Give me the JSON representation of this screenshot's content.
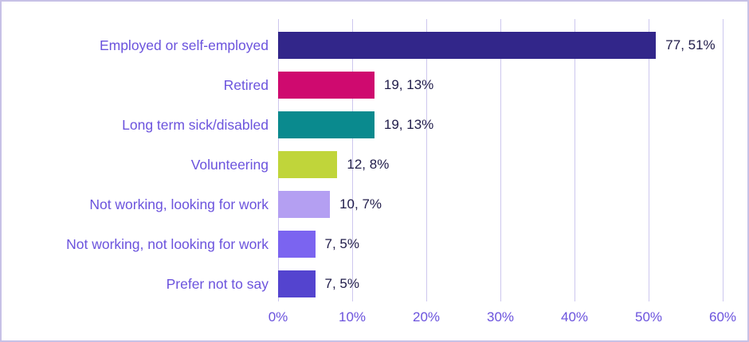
{
  "chart_data": {
    "type": "bar",
    "orientation": "horizontal",
    "title": "",
    "xlabel": "",
    "ylabel": "",
    "xlim": [
      0,
      60
    ],
    "grid": true,
    "x_tick_labels": [
      "0%",
      "10%",
      "20%",
      "30%",
      "40%",
      "50%",
      "60%"
    ],
    "x_tick_values": [
      0,
      10,
      20,
      30,
      40,
      50,
      60
    ],
    "categories": [
      "Employed or self-employed",
      "Retired",
      "Long term sick/disabled",
      "Volunteering",
      "Not working, looking for work",
      "Not working, not looking for work",
      "Prefer not to say"
    ],
    "counts": [
      77,
      19,
      19,
      12,
      10,
      7,
      7
    ],
    "percents": [
      51,
      13,
      13,
      8,
      7,
      5,
      5
    ],
    "data_labels": [
      "77, 51%",
      "19, 13%",
      "19, 13%",
      "12, 8%",
      "10, 7%",
      "7, 5%",
      "7, 5%"
    ],
    "bar_colors": [
      "#32268a",
      "#cf0a6f",
      "#0a8a8e",
      "#c0d53a",
      "#b49ff2",
      "#7b64f0",
      "#5444cf"
    ]
  },
  "colors": {
    "category_label": "#6b53dd",
    "axis_label": "#6b53dd",
    "data_label": "#201c4a",
    "gridline": "#cdc7ee",
    "frame_border": "#c7c1e6",
    "background": "#ffffff"
  }
}
